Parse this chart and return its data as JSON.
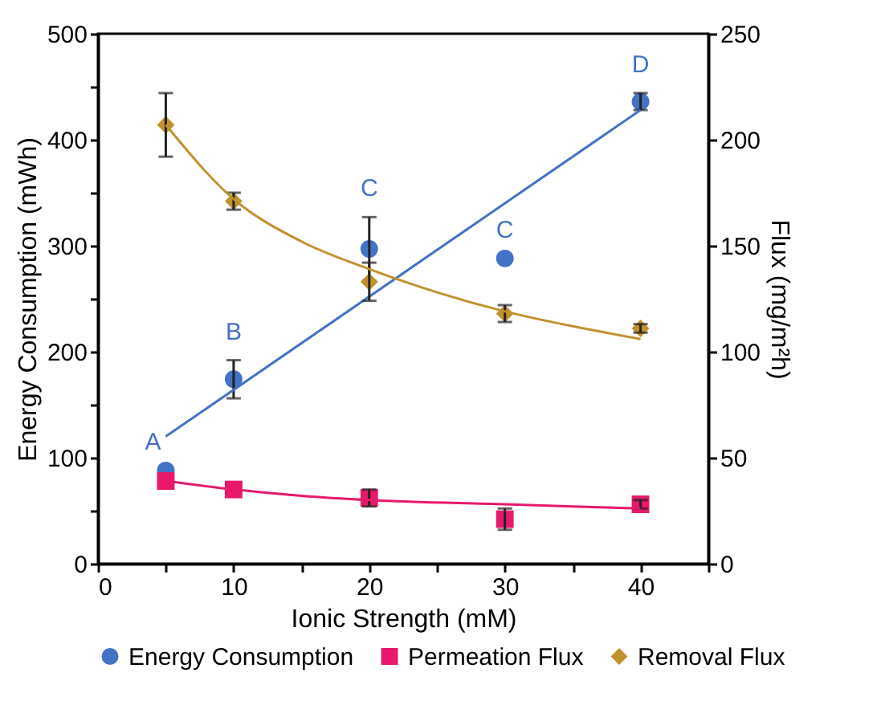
{
  "chart_data": {
    "type": "scatter",
    "xlabel": "Ionic Strength (mM)",
    "ylabel": "Energy Consumption (mWh)",
    "y2label": "Flux (mg/m²h)",
    "xlim": [
      0,
      45
    ],
    "xticks": [
      0,
      {
        "value": 5,
        "label": null
      },
      10,
      {
        "value": 15,
        "label": null
      },
      20,
      {
        "value": 25,
        "label": null
      },
      30,
      {
        "value": 35,
        "label": null
      },
      40,
      {
        "value": 45,
        "label": null
      }
    ],
    "ylim": [
      0,
      500
    ],
    "yticks": [
      0,
      {
        "value": 50,
        "label": null
      },
      100,
      {
        "value": 150,
        "label": null
      },
      200,
      {
        "value": 250,
        "label": null
      },
      300,
      {
        "value": 350,
        "label": null
      },
      400,
      {
        "value": 450,
        "label": null
      },
      500
    ],
    "y2lim": [
      0,
      250
    ],
    "y2ticks": [
      0,
      50,
      100,
      150,
      200,
      250
    ],
    "grid": false,
    "legend": "bottom",
    "series": [
      {
        "name": "Energy Consumption",
        "color": "#4472c4",
        "marker": "circle",
        "x": [
          5,
          10,
          20,
          30,
          40
        ],
        "values": [
          88,
          174,
          297,
          288,
          436
        ],
        "errors": [
          null,
          18,
          30,
          null,
          8
        ]
      },
      {
        "name": "Permeation Flux",
        "color": "#e8196c",
        "marker": "square",
        "axis": "y2",
        "x": [
          5,
          10,
          20,
          30,
          40
        ],
        "values": [
          39,
          35,
          31,
          21,
          28
        ],
        "errors": [
          null,
          null,
          4,
          5,
          2
        ]
      },
      {
        "name": "Removal Flux",
        "color": "#c0922e",
        "marker": "diamond",
        "axis": "y2",
        "x": [
          5,
          10,
          20,
          30,
          40
        ],
        "values": [
          207,
          171,
          133,
          118,
          111
        ],
        "errors": [
          15,
          4,
          9,
          4,
          2
        ]
      },
      {
        "type": "line",
        "color": "#4472c4",
        "x": [
          5,
          40
        ],
        "values": [
          120,
          428
        ]
      },
      {
        "type": "line",
        "color": "#e8196c",
        "axis": "y2",
        "x": [
          5,
          10,
          15,
          20,
          30,
          40
        ],
        "values": [
          39,
          35,
          32,
          30,
          28,
          26
        ]
      },
      {
        "type": "line",
        "color": "#c0922e",
        "axis": "y2",
        "x": [
          5,
          10,
          15,
          20,
          25,
          30,
          35,
          40
        ],
        "values": [
          207,
          172,
          152,
          139,
          128,
          119,
          112,
          106
        ]
      }
    ],
    "annotations": [
      {
        "text": "A",
        "x": 5,
        "y": 88
      },
      {
        "text": "B",
        "x": 10,
        "y": 174
      },
      {
        "text": "C",
        "x": 20,
        "y": 297
      },
      {
        "text": "C",
        "x": 30,
        "y": 288
      },
      {
        "text": "D",
        "x": 40,
        "y": 436
      }
    ]
  }
}
